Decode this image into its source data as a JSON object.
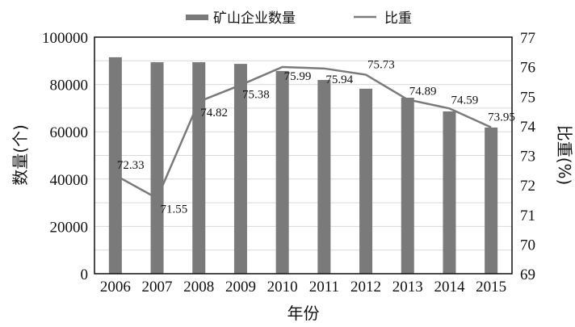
{
  "chart_data": {
    "type": "bar",
    "title": "",
    "categories": [
      "2006",
      "2007",
      "2008",
      "2009",
      "2010",
      "2011",
      "2012",
      "2013",
      "2014",
      "2015"
    ],
    "series": [
      {
        "name": "矿山企业数量",
        "type": "bar",
        "axis": "left",
        "color": "#7a7a7a",
        "values": [
          91500,
          89400,
          89400,
          88700,
          85700,
          81900,
          78200,
          74400,
          68600,
          61800
        ]
      },
      {
        "name": "比重",
        "type": "line",
        "axis": "right",
        "color": "#7a7a7a",
        "values": [
          72.33,
          71.55,
          74.82,
          75.38,
          75.99,
          75.94,
          75.73,
          74.89,
          74.59,
          73.95
        ],
        "labels": [
          "72.33",
          "71.55",
          "74.82",
          "75.38",
          "75.99",
          "75.94",
          "75.73",
          "74.89",
          "74.59",
          "73.95"
        ]
      }
    ],
    "xlabel": "年份",
    "ylabel": "数量(个)",
    "y2label": "比重(%)",
    "ylim": [
      0,
      100000
    ],
    "y2lim": [
      69,
      77
    ],
    "yticks": [
      "0",
      "20000",
      "40000",
      "60000",
      "80000",
      "100000"
    ],
    "y2ticks": [
      "69",
      "70",
      "71",
      "72",
      "73",
      "74",
      "75",
      "76",
      "77"
    ],
    "grid": true,
    "legend_position": "top"
  },
  "legend": {
    "bar": "矿山企业数量",
    "line": "比重"
  }
}
